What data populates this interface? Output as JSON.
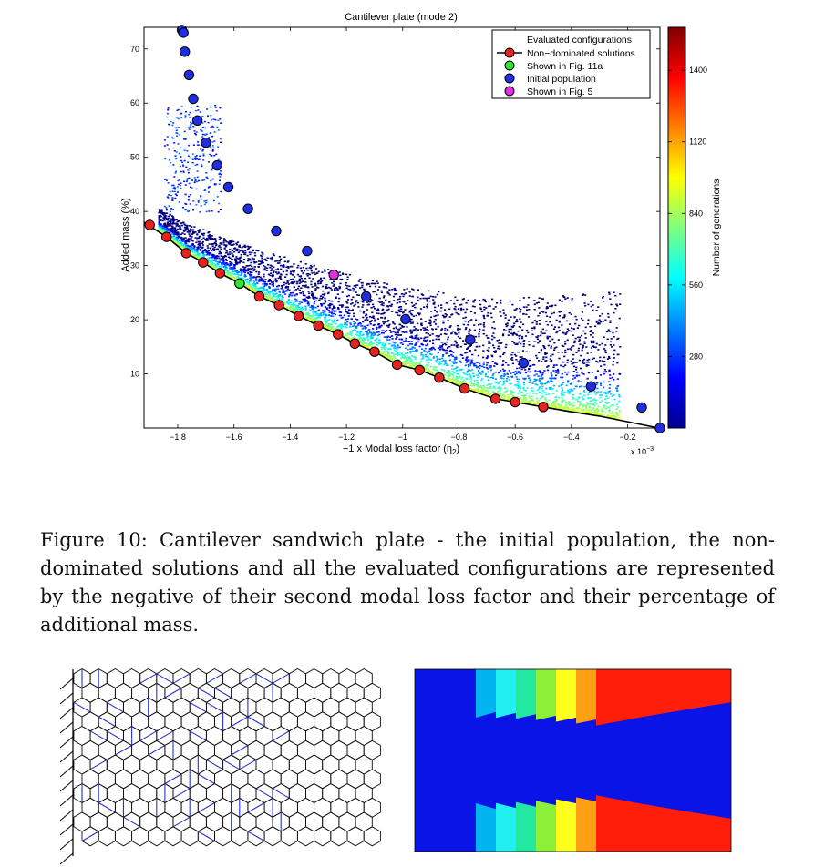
{
  "chart_data": {
    "type": "scatter",
    "title": "Cantilever plate (mode 2)",
    "xlabel": "−1 x Modal loss factor (η",
    "xlabel_sub": "2",
    "xlabel_close": ")",
    "x_multiplier": "x 10",
    "x_multiplier_exp": "−3",
    "ylabel": "Added mass (%)",
    "xlim": [
      -1.92,
      -0.085
    ],
    "ylim": [
      0,
      74
    ],
    "xticks": [
      -1.8,
      -1.6,
      -1.4,
      -1.2,
      -1.0,
      -0.8,
      -0.6,
      -0.4,
      -0.2
    ],
    "xtick_labels": [
      "−1.8",
      "−1.6",
      "−1.4",
      "−1.2",
      "−1",
      "−0.8",
      "−0.6",
      "−0.4",
      "−0.2"
    ],
    "yticks": [
      10,
      20,
      30,
      40,
      50,
      60,
      70
    ],
    "ytick_labels": [
      "10",
      "20",
      "30",
      "40",
      "50",
      "60",
      "70"
    ],
    "colorbar": {
      "label": "Number of generations",
      "range": [
        0,
        1568
      ],
      "ticks": [
        280,
        560,
        840,
        1120,
        1400
      ],
      "tick_labels": [
        "280",
        "560",
        "840",
        "1120",
        "1400"
      ]
    },
    "legend": {
      "placement": "top-right",
      "entries": [
        {
          "label": "Evaluated configurations",
          "marker": "none"
        },
        {
          "label": "Non−dominated solutions",
          "marker": "line-circle",
          "color": "#e8231f"
        },
        {
          "label": "Shown in Fig. 11a",
          "marker": "circle",
          "color": "#2ee82e"
        },
        {
          "label": "Initial population",
          "marker": "circle",
          "color": "#1f2fe0"
        },
        {
          "label": "Shown in Fig. 5",
          "marker": "circle",
          "color": "#e030e0"
        }
      ]
    },
    "series": [
      {
        "name": "Non−dominated solutions",
        "color": "#e8231f",
        "x": [
          -1.9,
          -1.84,
          -1.77,
          -1.71,
          -1.65,
          -1.58,
          -1.51,
          -1.44,
          -1.37,
          -1.3,
          -1.23,
          -1.17,
          -1.1,
          -1.02,
          -0.94,
          -0.87,
          -0.78,
          -0.67,
          -0.6,
          -0.5
        ],
        "y": [
          37.5,
          35.3,
          32.3,
          30.6,
          28.6,
          26.7,
          24.3,
          22.7,
          20.7,
          18.9,
          17.3,
          15.6,
          14.1,
          11.7,
          10.7,
          9.3,
          7.3,
          5.4,
          4.8,
          3.9
        ]
      },
      {
        "name": "Pareto front line",
        "color": "#000000",
        "x": [
          -1.92,
          -1.84,
          -1.77,
          -1.71,
          -1.65,
          -1.58,
          -1.51,
          -1.44,
          -1.37,
          -1.3,
          -1.23,
          -1.17,
          -1.1,
          -1.02,
          -0.94,
          -0.87,
          -0.78,
          -0.67,
          -0.6,
          -0.5,
          -0.4,
          -0.3,
          -0.09
        ],
        "y": [
          38.0,
          35.3,
          32.3,
          30.6,
          28.6,
          26.7,
          24.3,
          22.7,
          20.7,
          18.9,
          17.3,
          15.6,
          14.1,
          11.7,
          10.7,
          9.3,
          7.3,
          5.4,
          4.8,
          3.9,
          3.0,
          2.2,
          0.0
        ]
      },
      {
        "name": "Initial population",
        "color": "#1f2fe0",
        "x": [
          -1.785,
          -1.78,
          -1.775,
          -1.76,
          -1.745,
          -1.73,
          -1.7,
          -1.66,
          -1.62,
          -1.55,
          -1.45,
          -1.34,
          -1.13,
          -0.99,
          -0.76,
          -0.57,
          -0.33,
          -0.15,
          -0.085
        ],
        "y": [
          73.5,
          73.0,
          69.5,
          65.2,
          60.8,
          56.8,
          52.7,
          48.5,
          44.5,
          40.5,
          36.4,
          32.7,
          24.3,
          20.1,
          16.3,
          12.0,
          7.7,
          3.8,
          0.0
        ]
      },
      {
        "name": "Shown in Fig. 11a",
        "color": "#2ee82e",
        "x": [
          -1.58
        ],
        "y": [
          26.7
        ]
      },
      {
        "name": "Shown in Fig. 5",
        "color": "#e030e0",
        "x": [
          -1.245
        ],
        "y": [
          28.3
        ]
      }
    ]
  },
  "caption": "Figure 10:  Cantilever sandwich plate - the initial population, the non-dominated solutions and all the evaluated configurations are represented by the negative of their second modal loss factor and their percentage of additional mass."
}
